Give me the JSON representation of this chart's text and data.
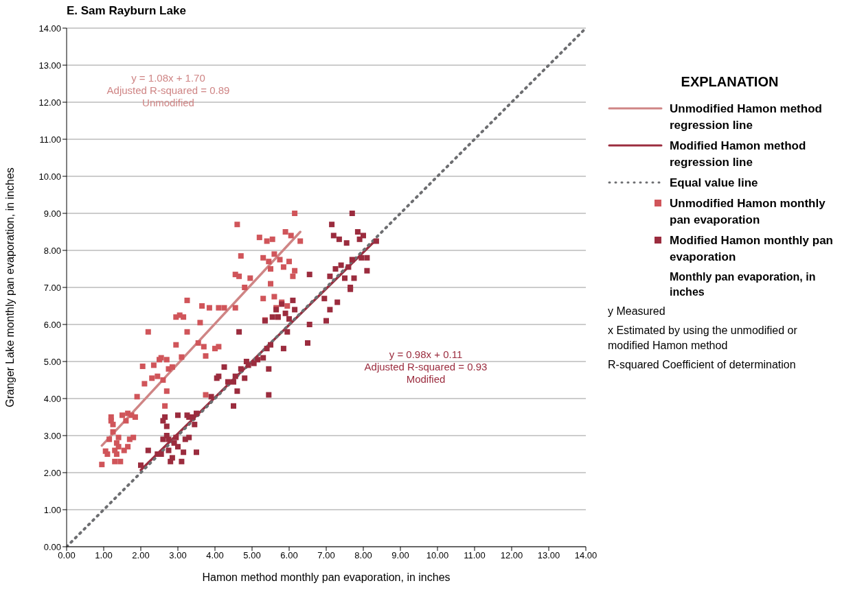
{
  "chart_data": {
    "type": "scatter",
    "title": "E. Sam Rayburn Lake",
    "xlabel": "Hamon method monthly pan evaporation, in inches",
    "ylabel": "Granger Lake monthly pan evaporation, in inches",
    "legend_title": "EXPLANATION",
    "legend": "right",
    "grid": "y",
    "xlim": [
      0,
      14
    ],
    "ylim": [
      0,
      14
    ],
    "xticks": [
      {
        "value": 0,
        "label": "0.00"
      },
      {
        "value": 1,
        "label": "1.00"
      },
      {
        "value": 2,
        "label": "2.00"
      },
      {
        "value": 3,
        "label": "3.00"
      },
      {
        "value": 4,
        "label": "4.00"
      },
      {
        "value": 5,
        "label": "5.00"
      },
      {
        "value": 6,
        "label": "6.00"
      },
      {
        "value": 7,
        "label": "7.00"
      },
      {
        "value": 8,
        "label": "8.00"
      },
      {
        "value": 9,
        "label": "9.00"
      },
      {
        "value": 10,
        "label": "10.00"
      },
      {
        "value": 11,
        "label": "11.00"
      },
      {
        "value": 12,
        "label": "12.00"
      },
      {
        "value": 13,
        "label": "13.00"
      },
      {
        "value": 14,
        "label": "14.00"
      }
    ],
    "yticks": [
      {
        "value": 0,
        "label": "0.00"
      },
      {
        "value": 1,
        "label": "1.00"
      },
      {
        "value": 2,
        "label": "2.00"
      },
      {
        "value": 3,
        "label": "3.00"
      },
      {
        "value": 4,
        "label": "4.00"
      },
      {
        "value": 5,
        "label": "5.00"
      },
      {
        "value": 6,
        "label": "6.00"
      },
      {
        "value": 7,
        "label": "7.00"
      },
      {
        "value": 8,
        "label": "8.00"
      },
      {
        "value": 9,
        "label": "9.00"
      },
      {
        "value": 10,
        "label": "10.00"
      },
      {
        "value": 11,
        "label": "11.00"
      },
      {
        "value": 12,
        "label": "12.00"
      },
      {
        "value": 13,
        "label": "13.00"
      },
      {
        "value": 14,
        "label": "14.00"
      }
    ],
    "series": [
      {
        "type": "line",
        "name": "Unmodified Hamon method regression line",
        "color": "#cf8585",
        "marker": "none",
        "line_style": "solid",
        "x": [
          0.95,
          6.3
        ],
        "values": [
          2.73,
          8.5
        ]
      },
      {
        "type": "line",
        "name": "Modified Hamon method regression line",
        "color": "#9b2c3e",
        "marker": "none",
        "line_style": "solid",
        "x": [
          2.0,
          8.35
        ],
        "values": [
          2.07,
          8.29
        ]
      },
      {
        "type": "line",
        "name": "Equal value line",
        "color": "#6d6e71",
        "marker": "none",
        "line_style": "dotted",
        "x": [
          0,
          14
        ],
        "values": [
          0,
          14
        ]
      },
      {
        "name": "Unmodified Hamon monthly pan evaporation",
        "color": "#d0555a",
        "marker": "square",
        "x": [
          0.95,
          1.05,
          1.1,
          1.15,
          1.2,
          1.2,
          1.25,
          1.25,
          1.3,
          1.3,
          1.35,
          1.35,
          1.4,
          1.4,
          1.45,
          1.5,
          1.55,
          1.6,
          1.65,
          1.65,
          1.7,
          1.75,
          1.8,
          1.85,
          1.9,
          2.05,
          2.1,
          2.2,
          2.3,
          2.35,
          2.45,
          2.5,
          2.55,
          2.6,
          2.65,
          2.7,
          2.7,
          2.75,
          2.85,
          2.95,
          2.95,
          3.05,
          3.1,
          3.15,
          3.25,
          3.25,
          3.55,
          3.6,
          3.65,
          3.7,
          3.75,
          3.75,
          3.85,
          4.0,
          4.1,
          4.1,
          4.25,
          4.55,
          4.55,
          4.6,
          4.65,
          4.7,
          4.8,
          4.95,
          5.2,
          5.3,
          5.3,
          5.35,
          5.4,
          5.45,
          5.5,
          5.5,
          5.55,
          5.6,
          5.6,
          5.65,
          5.7,
          5.75,
          5.8,
          5.85,
          5.9,
          5.95,
          6.0,
          6.05,
          6.1,
          6.15,
          6.15,
          6.3
        ],
        "values": [
          2.22,
          2.58,
          2.5,
          2.9,
          3.4,
          3.5,
          3.3,
          3.1,
          2.6,
          2.3,
          2.8,
          2.5,
          2.95,
          2.7,
          2.3,
          3.55,
          2.6,
          3.4,
          3.6,
          2.7,
          2.9,
          3.55,
          2.95,
          3.5,
          4.05,
          4.87,
          4.4,
          5.8,
          4.55,
          4.9,
          4.6,
          5.05,
          5.1,
          4.5,
          3.8,
          4.2,
          5.05,
          4.8,
          4.85,
          5.45,
          6.2,
          6.25,
          5.12,
          6.2,
          6.65,
          5.8,
          5.5,
          6.05,
          6.5,
          5.4,
          5.15,
          4.1,
          6.45,
          5.35,
          5.4,
          6.45,
          6.45,
          6.45,
          7.35,
          8.7,
          7.3,
          7.85,
          7.0,
          7.25,
          8.35,
          7.8,
          6.7,
          6.12,
          8.25,
          7.7,
          7.5,
          7.1,
          8.3,
          6.75,
          7.9,
          6.45,
          6.2,
          7.75,
          6.6,
          7.55,
          8.5,
          6.5,
          7.7,
          8.4,
          7.3,
          9.0,
          7.45,
          8.25
        ]
      },
      {
        "name": "Modified Hamon monthly pan evaporation",
        "color": "#9b2c3e",
        "marker": "square",
        "x": [
          2.0,
          2.2,
          2.45,
          2.55,
          2.6,
          2.6,
          2.65,
          2.7,
          2.7,
          2.75,
          2.75,
          2.8,
          2.85,
          2.9,
          2.95,
          3.0,
          3.0,
          3.1,
          3.15,
          3.2,
          3.25,
          3.3,
          3.3,
          3.4,
          3.45,
          3.5,
          3.5,
          3.9,
          4.05,
          4.1,
          4.25,
          4.35,
          4.5,
          4.5,
          4.55,
          4.6,
          4.65,
          4.7,
          4.8,
          4.85,
          4.9,
          5.05,
          5.15,
          5.3,
          5.35,
          5.4,
          5.45,
          5.45,
          5.5,
          5.55,
          5.65,
          5.7,
          5.8,
          5.85,
          5.9,
          5.95,
          6.0,
          6.1,
          6.15,
          6.5,
          6.55,
          6.55,
          6.95,
          7.0,
          7.1,
          7.1,
          7.15,
          7.2,
          7.25,
          7.3,
          7.35,
          7.4,
          7.5,
          7.55,
          7.6,
          7.65,
          7.65,
          7.7,
          7.7,
          7.75,
          7.85,
          7.9,
          7.95,
          8.0,
          8.1,
          8.1,
          8.35
        ],
        "values": [
          2.2,
          2.6,
          2.5,
          2.5,
          3.4,
          2.9,
          3.5,
          3.0,
          3.25,
          2.9,
          2.6,
          2.3,
          2.4,
          2.8,
          2.95,
          3.55,
          2.7,
          2.3,
          2.55,
          2.9,
          3.55,
          3.5,
          2.95,
          3.5,
          3.3,
          3.6,
          2.55,
          4.05,
          4.55,
          4.6,
          4.85,
          4.45,
          4.45,
          3.8,
          4.6,
          4.2,
          5.8,
          4.8,
          4.55,
          5.0,
          4.9,
          4.95,
          5.05,
          5.1,
          6.1,
          5.35,
          4.8,
          4.1,
          5.45,
          6.2,
          6.4,
          6.2,
          6.55,
          5.35,
          6.3,
          5.8,
          6.15,
          6.65,
          6.4,
          5.5,
          6.0,
          7.35,
          6.7,
          6.1,
          6.4,
          7.3,
          8.7,
          8.4,
          7.5,
          6.6,
          8.3,
          7.6,
          7.25,
          8.2,
          7.55,
          6.95,
          7.0,
          7.75,
          9.0,
          7.25,
          8.5,
          8.3,
          7.8,
          8.4,
          7.45,
          7.8,
          8.25
        ]
      }
    ],
    "annotations": [
      "y = 1.08x + 1.70\nAdjusted R-squared = 0.89\nUnmodified",
      "y = 0.98x + 0.11\nAdjusted R-squared = 0.93\nModified",
      "Monthly pan evaporation, in inches",
      "y Measured",
      "x Estimated by using the unmodified or modified Hamon method",
      "R-squared Coefficient of determination"
    ]
  }
}
